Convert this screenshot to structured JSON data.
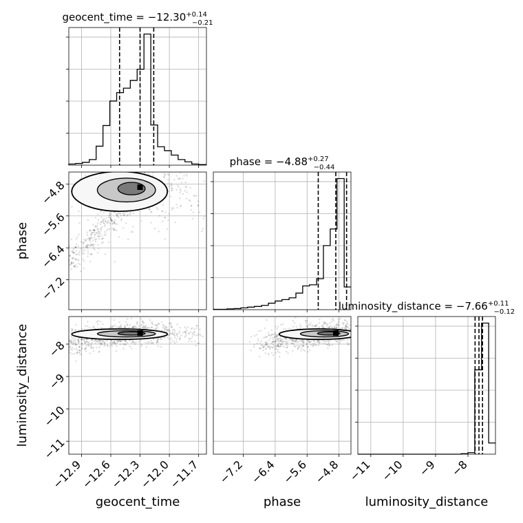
{
  "chart_data": {
    "type": "corner",
    "parameters": [
      "geocent_time",
      "phase",
      "luminosity_distance"
    ],
    "titles": [
      {
        "param": "geocent_time",
        "prefix": "geocent_time = ",
        "median": "−12.30",
        "plus": "+0.14",
        "minus": "−0.21"
      },
      {
        "param": "phase",
        "prefix": "phase = ",
        "median": "−4.88",
        "plus": "+0.27",
        "minus": "−0.44"
      },
      {
        "param": "luminosity_distance",
        "prefix": "luminosity_distance = ",
        "median": "−7.66",
        "plus": "+0.11",
        "minus": "−0.12"
      }
    ],
    "axes": {
      "geocent_time": {
        "range": [
          -13.03,
          -11.62
        ],
        "ticks": [
          -12.9,
          -12.6,
          -12.3,
          -12.0,
          -11.7
        ],
        "tick_labels": [
          "−12.9",
          "−12.6",
          "−12.3",
          "−12.0",
          "−11.7"
        ]
      },
      "phase": {
        "range": [
          -7.95,
          -4.5
        ],
        "ticks": [
          -7.2,
          -6.4,
          -5.6,
          -4.8
        ],
        "tick_labels": [
          "−7.2",
          "−6.4",
          "−5.6",
          "−4.8"
        ]
      },
      "luminosity_distance": {
        "range": [
          -11.4,
          -7.15
        ],
        "ticks": [
          -11,
          -10,
          -9,
          -8
        ],
        "tick_labels": [
          "−11",
          "−10",
          "−9",
          "−8"
        ]
      }
    },
    "marginals": {
      "geocent_time": {
        "edges": [
          -13.03,
          -12.96,
          -12.89,
          -12.82,
          -12.75,
          -12.68,
          -12.61,
          -12.54,
          -12.47,
          -12.4,
          -12.33,
          -12.26,
          -12.19,
          -12.12,
          -12.05,
          -11.98,
          -11.91,
          -11.84,
          -11.77,
          -11.7,
          -11.62
        ],
        "counts": [
          2,
          3,
          5,
          10,
          34,
          71,
          115,
          130,
          138,
          152,
          172,
          235,
          72,
          33,
          26,
          18,
          10,
          6,
          2,
          1
        ],
        "quantiles": [
          -12.51,
          -12.3,
          -12.16
        ]
      },
      "phase": {
        "edges": [
          -7.95,
          -7.78,
          -7.61,
          -7.43,
          -7.26,
          -7.09,
          -6.92,
          -6.74,
          -6.57,
          -6.4,
          -6.23,
          -6.05,
          -5.88,
          -5.71,
          -5.54,
          -5.36,
          -5.19,
          -5.02,
          -4.85,
          -4.67,
          -4.5
        ],
        "counts": [
          1,
          1,
          2,
          3,
          5,
          7,
          9,
          12,
          18,
          24,
          28,
          33,
          46,
          66,
          69,
          86,
          178,
          224,
          364,
          63
        ],
        "quantiles": [
          -5.32,
          -4.88,
          -4.61
        ]
      },
      "luminosity_distance": {
        "edges": [
          -11.4,
          -11.19,
          -10.97,
          -10.76,
          -10.55,
          -10.34,
          -10.12,
          -9.91,
          -9.7,
          -9.49,
          -9.28,
          -9.06,
          -8.85,
          -8.64,
          -8.43,
          -8.21,
          -8.0,
          -7.79,
          -7.58,
          -7.36,
          -7.15
        ],
        "counts": [
          0,
          0,
          0,
          0,
          0,
          0,
          0,
          0,
          0,
          0,
          0,
          0,
          0,
          0,
          0,
          1,
          3,
          166,
          258,
          22
        ],
        "quantiles": [
          -7.78,
          -7.66,
          -7.55
        ]
      }
    },
    "grid": true
  }
}
